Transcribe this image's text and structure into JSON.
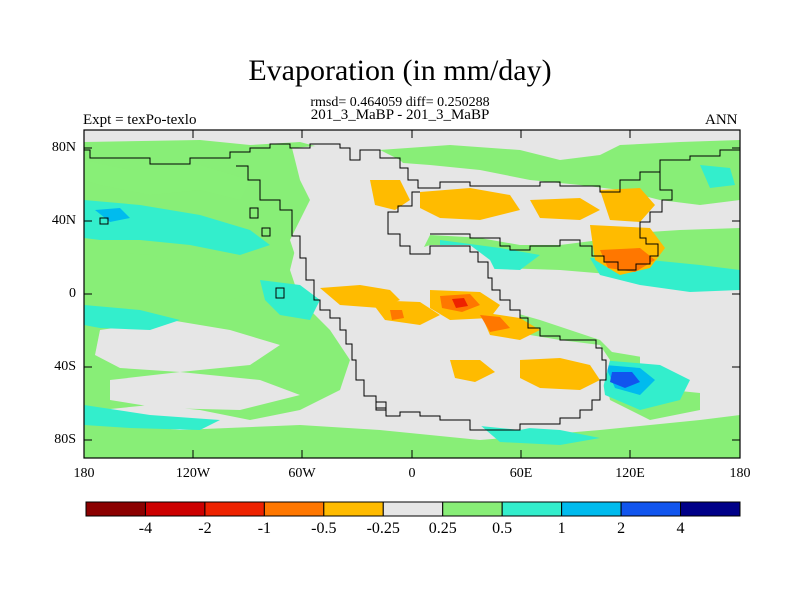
{
  "title": "Evaporation (in mm/day)",
  "stats": "rmsd= 0.464059 diff= 0.250288",
  "subtitle": "201_3_MaBP - 201_3_MaBP",
  "left_label": "Expt = texPo-texlo",
  "right_label": "ANN",
  "y_axis": {
    "ticks": [
      "80N",
      "40N",
      "0",
      "40S",
      "80S"
    ]
  },
  "x_axis": {
    "ticks": [
      "180",
      "120W",
      "60W",
      "0",
      "60E",
      "120E",
      "180"
    ]
  },
  "colorbar": {
    "labels": [
      "-4",
      "-2",
      "-1",
      "-0.5",
      "-0.25",
      "0.25",
      "0.5",
      "1",
      "2",
      "4"
    ],
    "colors": [
      "#8b0000",
      "#cc0000",
      "#ee2200",
      "#ff7700",
      "#ffbb00",
      "#e6e6e6",
      "#88ee77",
      "#33eecc",
      "#00bbee",
      "#1155ee",
      "#000088"
    ]
  },
  "map_colors": {
    "neutral": "#e6e6e6",
    "pos_small": "#88ee77",
    "pos_mid": "#33eecc",
    "pos_large": "#00bbee",
    "pos_big": "#1155ee",
    "neg_small": "#ffbb00",
    "neg_mid": "#ff7700",
    "neg_large": "#ee2200"
  }
}
